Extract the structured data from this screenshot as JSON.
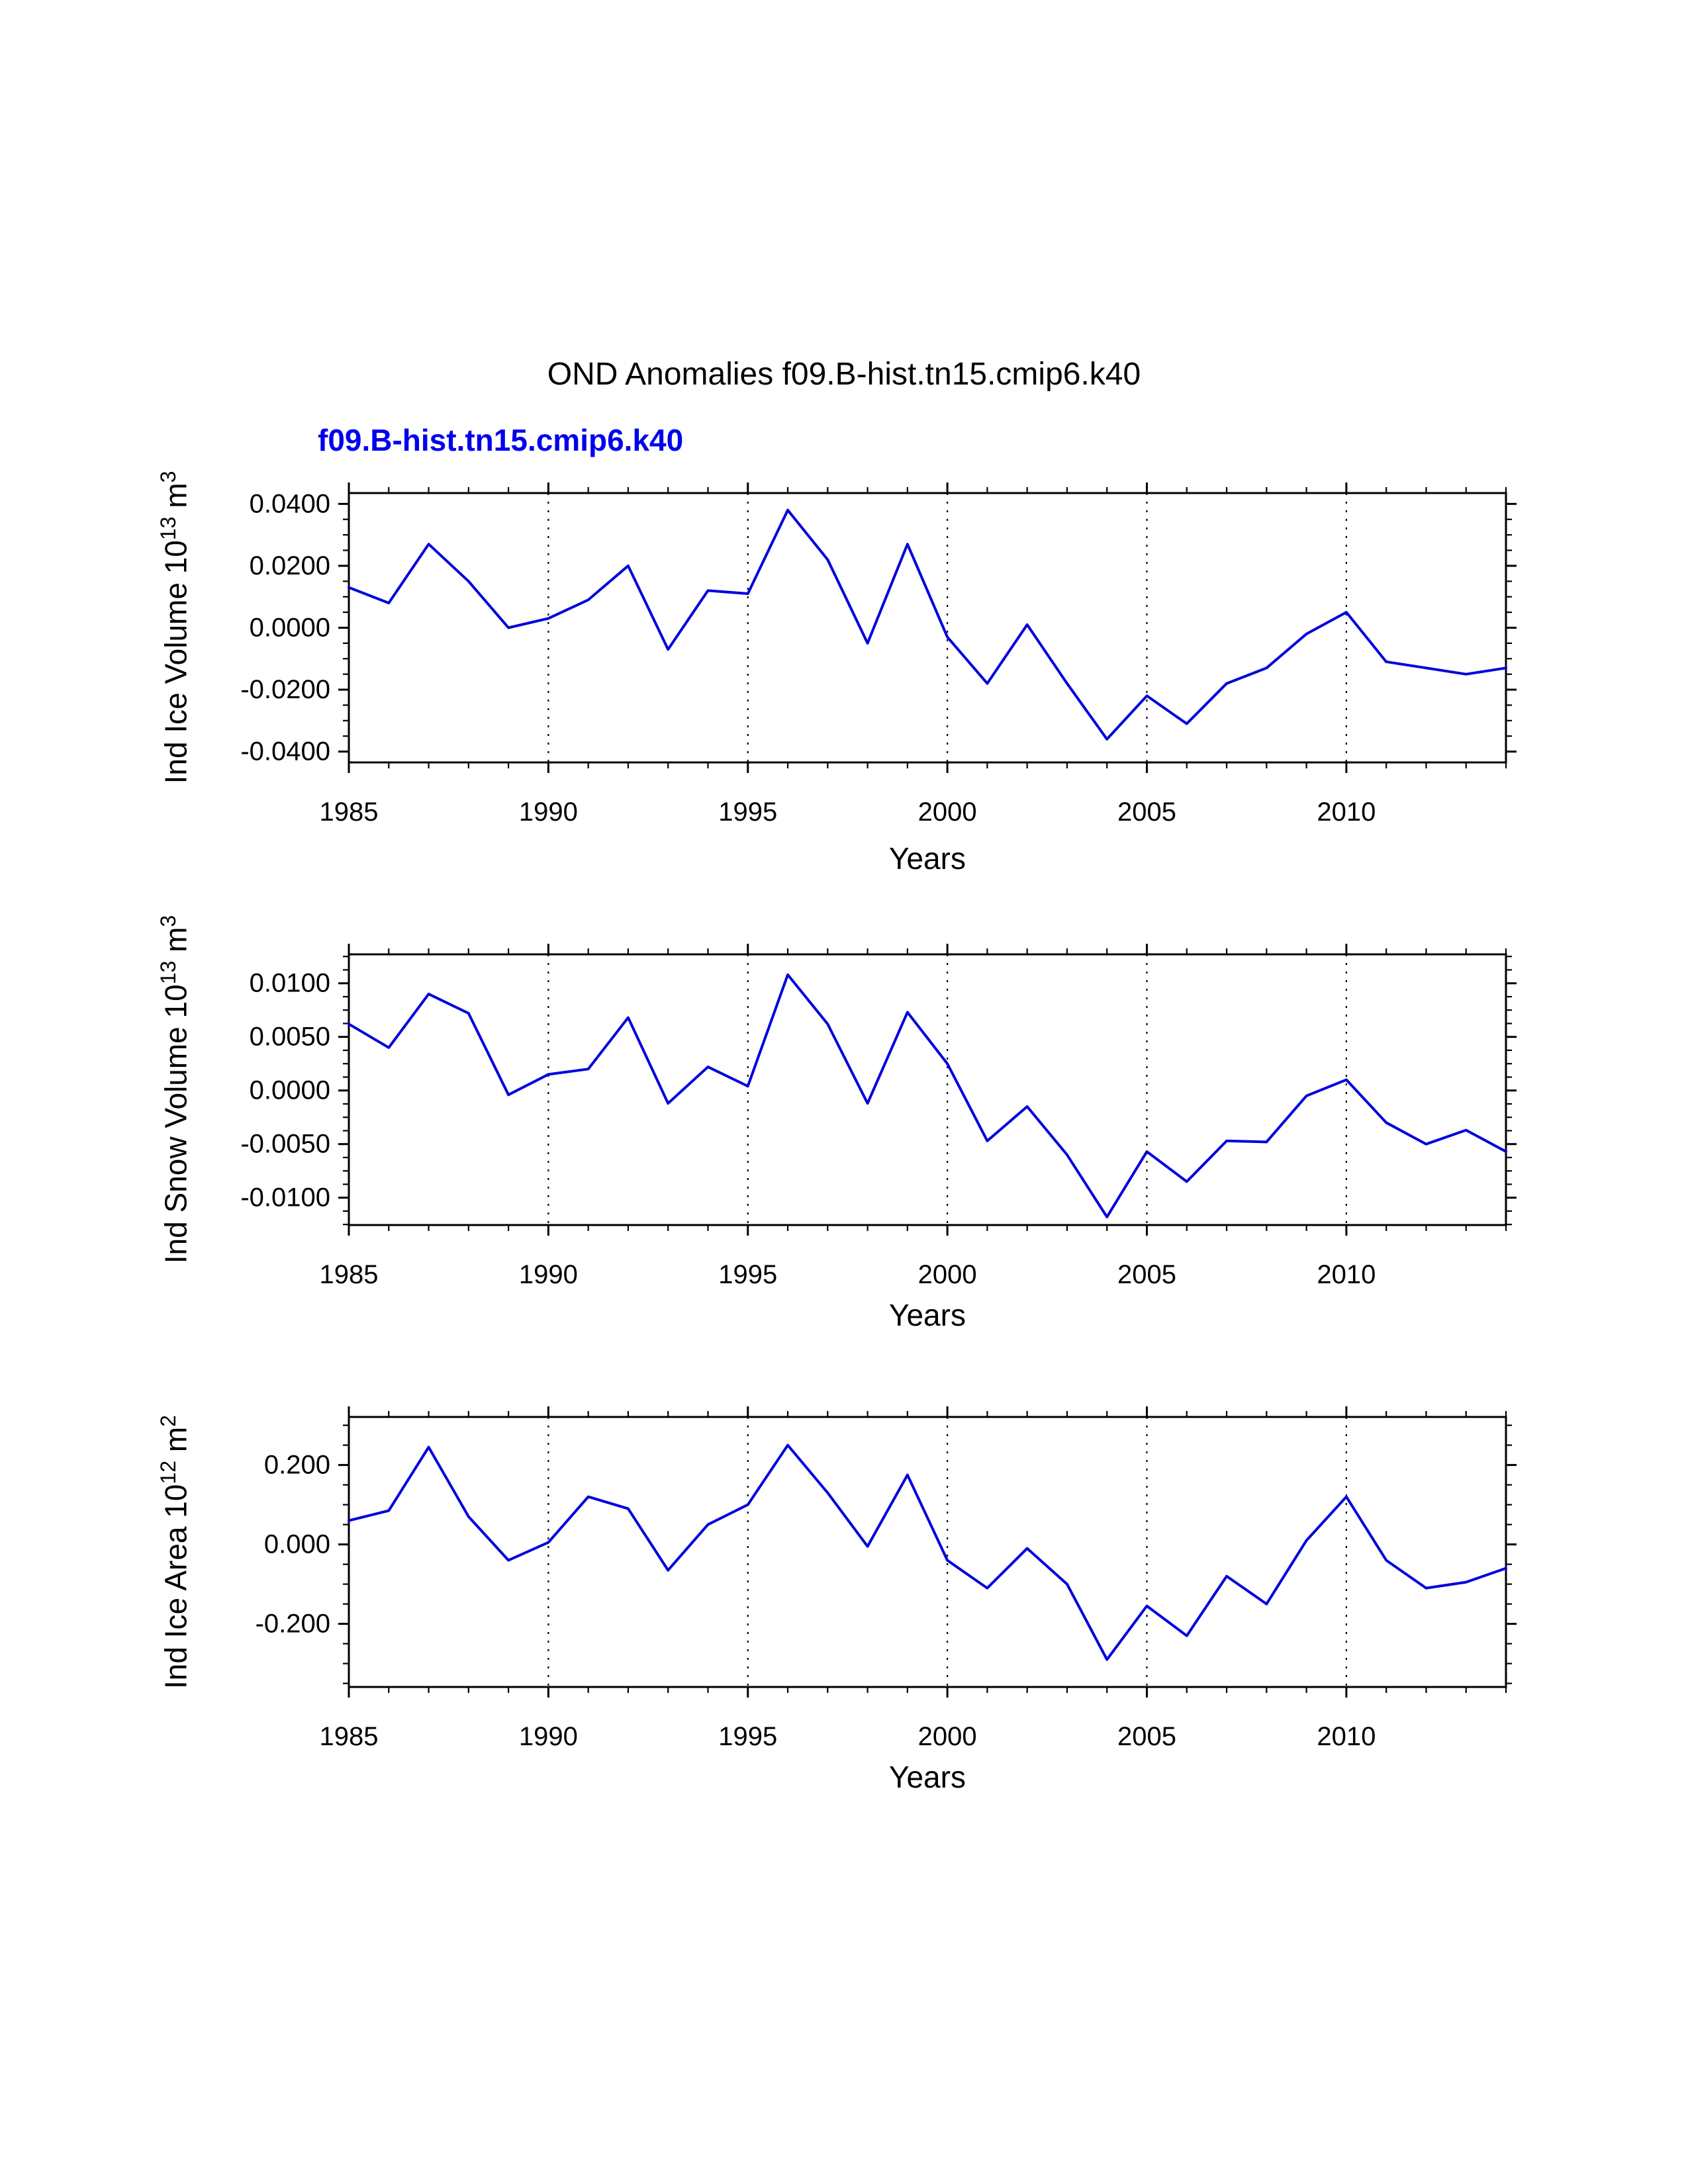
{
  "title": "OND Anomalies f09.B-hist.tn15.cmip6.k40",
  "subtitle": "f09.B-hist.tn15.cmip6.k40",
  "colors": {
    "line": "#0000dd",
    "subtitle": "#0000ee",
    "axis": "#000000"
  },
  "chart_data": [
    {
      "type": "line",
      "name": "ice-volume",
      "ylabel": {
        "base": "Ind Ice Volume 10",
        "exp": "13",
        "unit": " m",
        "unit_exp": "3"
      },
      "xlabel": "Years",
      "xlim": [
        1985,
        2014
      ],
      "ylim": [
        -0.0435,
        0.0435
      ],
      "x": [
        1985,
        1986,
        1987,
        1988,
        1989,
        1990,
        1991,
        1992,
        1993,
        1994,
        1995,
        1996,
        1997,
        1998,
        1999,
        2000,
        2001,
        2002,
        2003,
        2004,
        2005,
        2006,
        2007,
        2008,
        2009,
        2010,
        2011,
        2012,
        2013,
        2014
      ],
      "values": [
        0.013,
        0.008,
        0.027,
        0.015,
        0.0,
        0.003,
        0.009,
        0.02,
        -0.007,
        0.012,
        0.011,
        0.038,
        0.022,
        -0.005,
        0.027,
        -0.003,
        -0.018,
        0.001,
        -0.018,
        -0.036,
        -0.022,
        -0.031,
        -0.018,
        -0.013,
        -0.002,
        0.005,
        -0.011,
        -0.013,
        -0.015,
        -0.013
      ],
      "x_major_ticks": [
        1985,
        1990,
        1995,
        2000,
        2005,
        2010
      ],
      "x_tick_labels": [
        "1985",
        "1990",
        "1995",
        "2000",
        "2005",
        "2010"
      ],
      "x_minor_step": 1,
      "y_major_ticks": [
        -0.04,
        -0.02,
        0.0,
        0.02,
        0.04
      ],
      "y_tick_labels": [
        "-0.0400",
        "-0.0200",
        "0.0000",
        "0.0200",
        "0.0400"
      ],
      "y_minor_step": 0.005,
      "grid_x": [
        1990,
        1995,
        2000,
        2005,
        2010
      ]
    },
    {
      "type": "line",
      "name": "snow-volume",
      "ylabel": {
        "base": "Ind Snow Volume 10",
        "exp": "13",
        "unit": " m",
        "unit_exp": "3"
      },
      "xlabel": "Years",
      "xlim": [
        1985,
        2014
      ],
      "ylim": [
        -0.01255,
        0.0127
      ],
      "x": [
        1985,
        1986,
        1987,
        1988,
        1989,
        1990,
        1991,
        1992,
        1993,
        1994,
        1995,
        1996,
        1997,
        1998,
        1999,
        2000,
        2001,
        2002,
        2003,
        2004,
        2005,
        2006,
        2007,
        2008,
        2009,
        2010,
        2011,
        2012,
        2013,
        2014
      ],
      "values": [
        0.0062,
        0.004,
        0.009,
        0.0072,
        -0.0004,
        0.0015,
        0.002,
        0.0068,
        -0.0012,
        0.0022,
        0.0004,
        0.0108,
        0.0062,
        -0.0012,
        0.0073,
        0.0025,
        -0.0047,
        -0.0015,
        -0.006,
        -0.0118,
        -0.0057,
        -0.0085,
        -0.0047,
        -0.0048,
        -0.0005,
        0.001,
        -0.003,
        -0.005,
        -0.0037,
        -0.0057
      ],
      "x_major_ticks": [
        1985,
        1990,
        1995,
        2000,
        2005,
        2010
      ],
      "x_tick_labels": [
        "1985",
        "1990",
        "1995",
        "2000",
        "2005",
        "2010"
      ],
      "x_minor_step": 1,
      "y_major_ticks": [
        -0.01,
        -0.005,
        0.0,
        0.005,
        0.01
      ],
      "y_tick_labels": [
        "-0.0100",
        "-0.0050",
        "0.0000",
        "0.0050",
        "0.0100"
      ],
      "y_minor_step": 0.00125,
      "grid_x": [
        1990,
        1995,
        2000,
        2005,
        2010
      ]
    },
    {
      "type": "line",
      "name": "ice-area",
      "ylabel": {
        "base": "Ind Ice Area 10",
        "exp": "12",
        "unit": " m",
        "unit_exp": "2"
      },
      "xlabel": "Years",
      "xlim": [
        1985,
        2014
      ],
      "ylim": [
        -0.359,
        0.321
      ],
      "x": [
        1985,
        1986,
        1987,
        1988,
        1989,
        1990,
        1991,
        1992,
        1993,
        1994,
        1995,
        1996,
        1997,
        1998,
        1999,
        2000,
        2001,
        2002,
        2003,
        2004,
        2005,
        2006,
        2007,
        2008,
        2009,
        2010,
        2011,
        2012,
        2013,
        2014
      ],
      "values": [
        0.06,
        0.085,
        0.245,
        0.07,
        -0.04,
        0.005,
        0.12,
        0.09,
        -0.065,
        0.05,
        0.1,
        0.25,
        0.13,
        -0.005,
        0.175,
        -0.04,
        -0.11,
        -0.01,
        -0.1,
        -0.29,
        -0.155,
        -0.23,
        -0.08,
        -0.15,
        0.01,
        0.12,
        -0.04,
        -0.11,
        -0.095,
        -0.06
      ],
      "x_major_ticks": [
        1985,
        1990,
        1995,
        2000,
        2005,
        2010
      ],
      "x_tick_labels": [
        "1985",
        "1990",
        "1995",
        "2000",
        "2005",
        "2010"
      ],
      "x_minor_step": 1,
      "y_major_ticks": [
        -0.2,
        0.0,
        0.2
      ],
      "y_tick_labels": [
        "-0.200",
        "0.000",
        "0.200"
      ],
      "y_minor_step": 0.05,
      "grid_x": [
        1990,
        1995,
        2000,
        2005,
        2010
      ]
    }
  ]
}
